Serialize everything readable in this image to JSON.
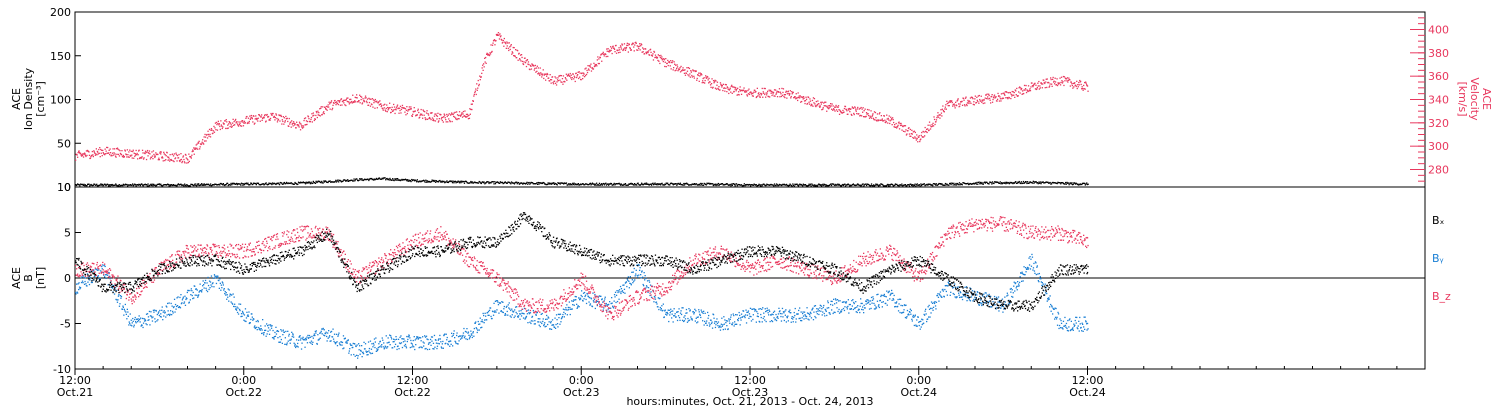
{
  "title_axis_caption": "hours:minutes, Oct. 21, 2013 - Oct. 24, 2013",
  "colors": {
    "black": "#000000",
    "pink": "#e8385e",
    "blue": "#1a7fd4",
    "axis": "#000000"
  },
  "x_axis": {
    "range_hours": [
      0,
      96
    ],
    "ticks": [
      {
        "hour": 0,
        "time": "12:00",
        "date": "Oct.21"
      },
      {
        "hour": 12,
        "time": "0:00",
        "date": "Oct.22"
      },
      {
        "hour": 24,
        "time": "12:00",
        "date": "Oct.22"
      },
      {
        "hour": 36,
        "time": "0:00",
        "date": "Oct.23"
      },
      {
        "hour": 48,
        "time": "12:00",
        "date": "Oct.23"
      },
      {
        "hour": 60,
        "time": "0:00",
        "date": "Oct.24"
      },
      {
        "hour": 72,
        "time": "12:00",
        "date": "Oct.24"
      }
    ]
  },
  "chart_data": [
    {
      "type": "scatter",
      "panel": "top",
      "ylabel_left": [
        "ACE",
        "Ion Density",
        "[cm⁻³]"
      ],
      "ylabel_right": [
        "ACE",
        "Velocity",
        "[km/s]"
      ],
      "ylim_left": [
        0,
        200
      ],
      "left_ticks": [
        0,
        50,
        100,
        150,
        200
      ],
      "ylim_right": [
        265,
        415
      ],
      "right_ticks": [
        280,
        300,
        320,
        340,
        360,
        380,
        400
      ],
      "series": [
        {
          "name": "Ion Density",
          "axis": "left",
          "color": "black",
          "x": [
            0,
            4,
            8,
            12,
            16,
            20,
            22,
            24,
            28,
            32,
            36,
            40,
            44,
            48,
            52,
            56,
            60,
            64,
            68,
            72
          ],
          "y": [
            3,
            3,
            3,
            4,
            5,
            9,
            10,
            8,
            6,
            5,
            4,
            4,
            4,
            3,
            3,
            3,
            3,
            5,
            6,
            4
          ]
        },
        {
          "name": "Velocity",
          "axis": "right",
          "color": "pink",
          "x": [
            0,
            2,
            4,
            6,
            8,
            10,
            12,
            14,
            16,
            18,
            20,
            22,
            24,
            26,
            28,
            29,
            30,
            32,
            34,
            36,
            38,
            40,
            42,
            44,
            46,
            48,
            50,
            52,
            54,
            56,
            58,
            60,
            62,
            64,
            66,
            68,
            70,
            72
          ],
          "y": [
            292,
            296,
            294,
            292,
            290,
            318,
            322,
            326,
            318,
            335,
            342,
            334,
            330,
            324,
            328,
            370,
            395,
            372,
            356,
            361,
            383,
            386,
            372,
            362,
            350,
            346,
            347,
            340,
            332,
            330,
            322,
            307,
            336,
            340,
            343,
            351,
            357,
            351
          ]
        }
      ]
    },
    {
      "type": "scatter",
      "panel": "bottom",
      "ylabel_left": [
        "ACE",
        "B",
        "[nT]"
      ],
      "ylim": [
        -10,
        10
      ],
      "ticks": [
        -10,
        -5,
        0,
        5,
        10
      ],
      "zero_line": true,
      "legend": [
        "Bₓ",
        "Bᵧ",
        "B_z"
      ],
      "series": [
        {
          "name": "Bₓ",
          "color": "black",
          "x": [
            0,
            2,
            4,
            6,
            8,
            10,
            12,
            14,
            16,
            18,
            20,
            22,
            24,
            26,
            28,
            30,
            32,
            34,
            36,
            38,
            40,
            42,
            44,
            46,
            48,
            50,
            52,
            54,
            56,
            58,
            60,
            62,
            64,
            66,
            68,
            70,
            72
          ],
          "y": [
            2,
            -1,
            -1,
            1,
            2,
            2,
            1,
            2,
            3,
            5,
            -1,
            1,
            3,
            3,
            4,
            4,
            7,
            4,
            3,
            2,
            2,
            2,
            1,
            2,
            3,
            3,
            2,
            1,
            -1,
            1,
            2,
            0,
            -2,
            -3,
            -3,
            1,
            1
          ]
        },
        {
          "name": "Bᵧ",
          "color": "blue",
          "x": [
            0,
            2,
            4,
            6,
            8,
            10,
            12,
            14,
            16,
            18,
            20,
            22,
            24,
            26,
            28,
            30,
            32,
            34,
            36,
            38,
            40,
            42,
            44,
            46,
            48,
            50,
            52,
            54,
            56,
            58,
            60,
            62,
            64,
            66,
            68,
            70,
            72
          ],
          "y": [
            -1,
            1,
            -5,
            -4,
            -2,
            0,
            -4,
            -6,
            -7,
            -6,
            -8,
            -7,
            -7,
            -7,
            -6,
            -3,
            -4,
            -5,
            -2,
            -3,
            1,
            -4,
            -4,
            -5,
            -4,
            -4,
            -4,
            -3,
            -3,
            -2,
            -5,
            -1,
            -2,
            -3,
            2,
            -5,
            -5
          ]
        },
        {
          "name": "B_z",
          "color": "pink",
          "x": [
            0,
            2,
            4,
            6,
            8,
            10,
            12,
            14,
            16,
            18,
            20,
            22,
            24,
            26,
            28,
            30,
            32,
            34,
            36,
            38,
            40,
            42,
            44,
            46,
            48,
            50,
            52,
            54,
            56,
            58,
            60,
            62,
            64,
            66,
            68,
            70,
            72
          ],
          "y": [
            1,
            1,
            -2,
            1,
            3,
            3,
            3,
            4,
            5,
            5,
            0,
            2,
            4,
            5,
            2,
            0,
            -3,
            -3,
            0,
            -4,
            -2,
            -1,
            2,
            3,
            1,
            2,
            1,
            0,
            2,
            3,
            0,
            5,
            6,
            6,
            5,
            5,
            4
          ]
        }
      ]
    }
  ]
}
